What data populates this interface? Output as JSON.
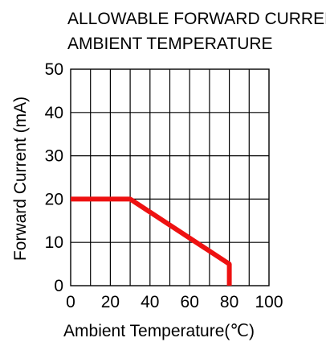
{
  "chart_data": {
    "type": "line",
    "title_lines": [
      "ALLOWABLE FORWARD CURRENT",
      "AMBIENT TEMPERATURE"
    ],
    "xlabel": "Ambient Temperature(℃)",
    "ylabel": "Forward Current (mA)",
    "xlim": [
      0,
      100
    ],
    "ylim": [
      0,
      50
    ],
    "x_ticks": [
      0,
      20,
      40,
      60,
      80,
      100
    ],
    "y_ticks": [
      0,
      10,
      20,
      30,
      40,
      50
    ],
    "x_grid_step": 10,
    "y_grid_step": 10,
    "grid": true,
    "series": [
      {
        "color": "#ee1111",
        "x": [
          0,
          30,
          80,
          80
        ],
        "y": [
          20,
          20,
          5,
          0
        ]
      }
    ]
  }
}
